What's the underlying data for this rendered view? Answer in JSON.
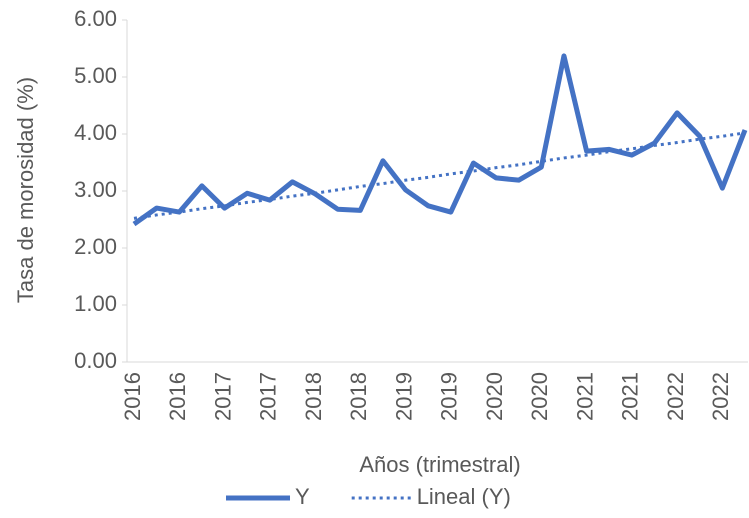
{
  "chart_data": {
    "type": "line",
    "x_label": "Años (trimestral)",
    "y_label": "Tasa de morosidad (%)",
    "categories": [
      "2016",
      null,
      "2016",
      null,
      "2017",
      null,
      "2017",
      null,
      "2018",
      null,
      "2018",
      null,
      "2019",
      null,
      "2019",
      null,
      "2020",
      null,
      "2020",
      null,
      "2021",
      null,
      "2021",
      null,
      "2022",
      null,
      "2022",
      null
    ],
    "series": [
      {
        "name": "Y",
        "color": "#4472c4",
        "line_style": "solid",
        "values": [
          2.42,
          2.7,
          2.63,
          3.09,
          2.7,
          2.96,
          2.84,
          3.16,
          2.95,
          2.68,
          2.66,
          3.53,
          3.02,
          2.74,
          2.63,
          3.49,
          3.23,
          3.19,
          3.42,
          5.37,
          3.7,
          3.73,
          3.63,
          3.84,
          4.37,
          3.96,
          3.05,
          4.07
        ]
      },
      {
        "name": "Lineal (Y)",
        "color": "#4472c4",
        "line_style": "dotted",
        "values": [
          2.52,
          2.58,
          2.63,
          2.69,
          2.74,
          2.8,
          2.85,
          2.91,
          2.96,
          3.02,
          3.08,
          3.13,
          3.19,
          3.24,
          3.3,
          3.35,
          3.41,
          3.46,
          3.52,
          3.58,
          3.63,
          3.69,
          3.74,
          3.8,
          3.85,
          3.91,
          3.96,
          4.02
        ]
      }
    ],
    "ylim": [
      0,
      6
    ],
    "yticks": [
      {
        "value": 0,
        "label": "0.00"
      },
      {
        "value": 1,
        "label": "1.00"
      },
      {
        "value": 2,
        "label": "2.00"
      },
      {
        "value": 3,
        "label": "3.00"
      },
      {
        "value": 4,
        "label": "4.00"
      },
      {
        "value": 5,
        "label": "5.00"
      },
      {
        "value": 6,
        "label": "6.00"
      }
    ],
    "grid": false,
    "legend": "bottom"
  }
}
